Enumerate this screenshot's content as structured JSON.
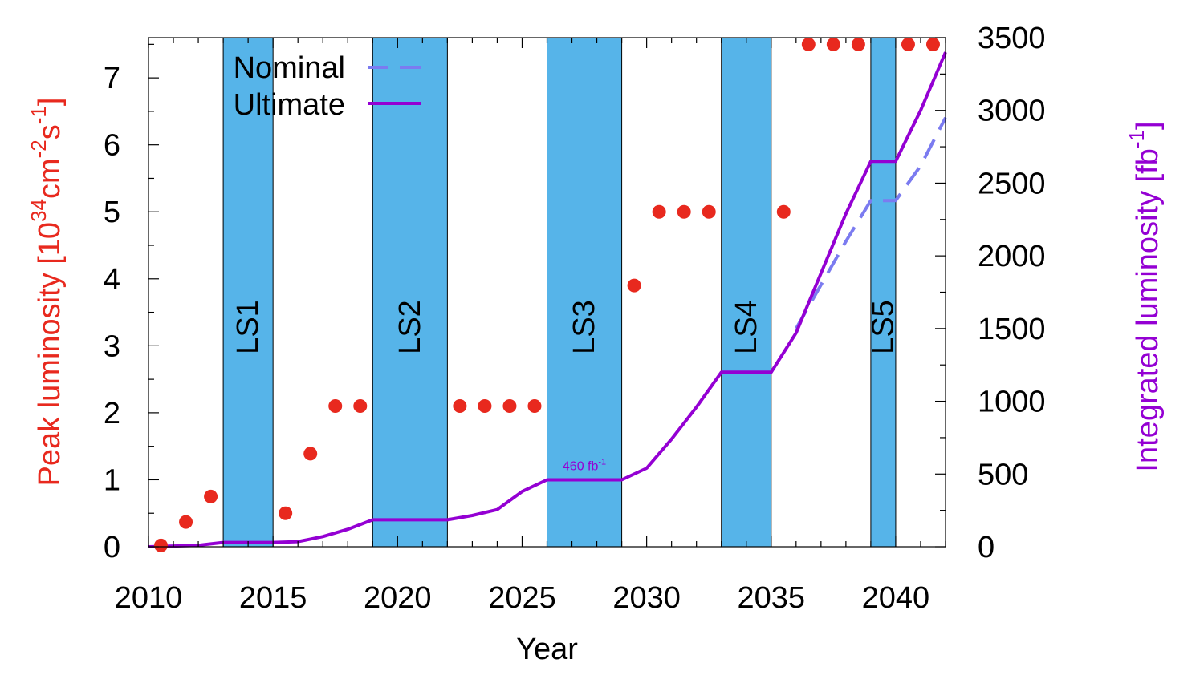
{
  "chart_data": {
    "type": "line",
    "xlabel": "Year",
    "ylabel_left": "Peak luminosity [10^34 cm^-2 s^-1]",
    "ylabel_right": "Integrated luminosity [fb^-1]",
    "ylabel_left_parts": {
      "main": "Peak luminosity [10",
      "exp1": "34",
      "mid1": "cm",
      "exp2": "-2",
      "mid2": "s",
      "exp3": "-1",
      "end": "]"
    },
    "ylabel_right_parts": {
      "main": "Integrated luminosity [fb",
      "exp": "-1",
      "end": "]"
    },
    "xlim": [
      2010,
      2042
    ],
    "ylim_left": [
      0,
      7.6
    ],
    "ylim_right": [
      0,
      3500
    ],
    "grid": false,
    "legend_position": "top-center",
    "x_ticks": [
      2010,
      2015,
      2020,
      2025,
      2030,
      2035,
      2040
    ],
    "y_left_ticks": [
      0,
      1,
      2,
      3,
      4,
      5,
      6,
      7
    ],
    "y_right_ticks": [
      0,
      500,
      1000,
      1500,
      2000,
      2500,
      3000,
      3500
    ],
    "shutdowns": [
      {
        "label": "LS1",
        "start": 2013,
        "end": 2015
      },
      {
        "label": "LS2",
        "start": 2019,
        "end": 2022
      },
      {
        "label": "LS3",
        "start": 2026,
        "end": 2029
      },
      {
        "label": "LS4",
        "start": 2033,
        "end": 2035
      },
      {
        "label": "LS5",
        "start": 2039,
        "end": 2040
      }
    ],
    "peak_luminosity": {
      "axis": "left",
      "x": [
        2010.5,
        2011.5,
        2012.5,
        2015.5,
        2016.5,
        2017.5,
        2018.5,
        2022.5,
        2023.5,
        2024.5,
        2025.5,
        2029.5,
        2030.5,
        2031.5,
        2032.5,
        2035.5,
        2036.5,
        2037.5,
        2038.5,
        2040.5,
        2041.5
      ],
      "y": [
        0.02,
        0.37,
        0.75,
        0.5,
        1.39,
        2.1,
        2.1,
        2.1,
        2.1,
        2.1,
        2.1,
        3.9,
        5.0,
        5.0,
        5.0,
        5.0,
        7.5,
        7.5,
        7.5,
        7.5,
        7.5
      ]
    },
    "series": [
      {
        "name": "Nominal",
        "axis": "right",
        "style": "dashed",
        "color": "#7b7bf0",
        "x": [
          2036,
          2037,
          2038,
          2039,
          2040,
          2041,
          2042
        ],
        "y": [
          1500,
          1800,
          2100,
          2380,
          2380,
          2620,
          2950
        ]
      },
      {
        "name": "Ultimate",
        "axis": "right",
        "style": "solid",
        "color": "#9400d3",
        "x": [
          2010,
          2011,
          2012,
          2013,
          2015,
          2016,
          2017,
          2018,
          2019,
          2022,
          2023,
          2024,
          2025,
          2026,
          2029,
          2030,
          2031,
          2032,
          2033,
          2035,
          2036,
          2037,
          2038,
          2039,
          2040,
          2041,
          2042
        ],
        "y": [
          0,
          5,
          10,
          30,
          30,
          35,
          70,
          120,
          185,
          185,
          215,
          255,
          380,
          460,
          460,
          540,
          740,
          960,
          1200,
          1200,
          1470,
          1880,
          2290,
          2650,
          2650,
          3000,
          3400
        ]
      }
    ],
    "annotations": [
      {
        "text": "460 fb",
        "sup": "-1",
        "x": 2027.5,
        "y_right": 460,
        "color": "#9400d3"
      }
    ],
    "colors": {
      "points": "#e8291e",
      "band": "#56b4e9",
      "ultimate": "#9400d3",
      "nominal": "#7b7bf0",
      "left_axis_title": "#e8291e",
      "right_axis_title": "#9400d3"
    }
  }
}
